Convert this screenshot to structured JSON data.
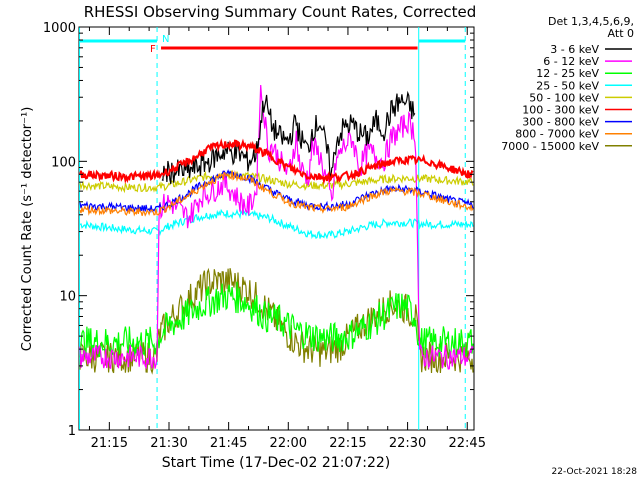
{
  "chart_data": {
    "type": "line",
    "title": "RHESSI Observing Summary Count Rates, Corrected",
    "xlabel": "Start Time (17-Dec-02 21:07:22)",
    "ylabel": "Corrected Count Rate (s⁻¹ detector⁻¹)",
    "yscale": "log",
    "ylim": [
      1,
      1000
    ],
    "xlim_minutes": [
      7.37,
      106.7
    ],
    "x_unit": "minutes after 21:00 UT",
    "x_ticks": [
      15,
      30,
      45,
      60,
      75,
      90,
      105
    ],
    "x_tick_labels": [
      "21:15",
      "21:30",
      "21:45",
      "22:00",
      "22:15",
      "22:30",
      "22:45"
    ],
    "y_ticks": [
      1,
      10,
      100,
      1000
    ],
    "y_tick_labels": [
      "1",
      "10",
      "100",
      "1000"
    ],
    "legend_header": [
      "Det 1,3,4,5,6,9,",
      "Att 0"
    ],
    "legend_position": "top-right, outside plot",
    "series": [
      {
        "name": "3 - 6 keV",
        "color": "#000000",
        "x": [
          7.4,
          20,
          27,
          28,
          35,
          40,
          44,
          48,
          50,
          52,
          54,
          56,
          58,
          60,
          62,
          63,
          65,
          66,
          68,
          71,
          72,
          74,
          76,
          78,
          80,
          82,
          84,
          86,
          88,
          90,
          92,
          93
        ],
        "y": [
          null,
          null,
          null,
          82,
          85,
          100,
          120,
          112,
          100,
          115,
          300,
          180,
          150,
          140,
          200,
          150,
          120,
          170,
          200,
          80,
          140,
          180,
          190,
          160,
          150,
          200,
          170,
          240,
          280,
          270,
          220,
          null
        ]
      },
      {
        "name": "6 - 12 keV",
        "color": "#ff00ff",
        "x": [
          7.4,
          10,
          15,
          20,
          27,
          27.5,
          30,
          35,
          38,
          41,
          44,
          48,
          50,
          52,
          53,
          54,
          55,
          56,
          58,
          60,
          62,
          63,
          65,
          66,
          68,
          71,
          72,
          74,
          76,
          78,
          80,
          82,
          84,
          86,
          88,
          90,
          92,
          93,
          96,
          100,
          106.5
        ],
        "y": [
          3.5,
          3.5,
          3.5,
          3.5,
          3.5,
          45,
          50,
          38,
          55,
          60,
          70,
          50,
          45,
          60,
          350,
          220,
          120,
          130,
          100,
          80,
          150,
          90,
          75,
          130,
          110,
          50,
          100,
          130,
          150,
          90,
          120,
          110,
          100,
          150,
          170,
          200,
          160,
          3.5,
          3.5,
          3.5,
          3.5
        ]
      },
      {
        "name": "12 - 25 keV",
        "color": "#00ff00",
        "x": [
          7.4,
          15,
          20,
          27,
          27.5,
          30,
          34,
          38,
          42,
          45,
          48,
          52,
          54,
          58,
          62,
          66,
          70,
          75,
          80,
          85,
          88,
          90,
          92,
          93,
          96,
          100,
          106.5
        ],
        "y": [
          4.5,
          4.5,
          4.5,
          4.5,
          5.0,
          6,
          7,
          8.5,
          9.5,
          10,
          9.5,
          8,
          7,
          6.5,
          5.5,
          5,
          4.8,
          5,
          6,
          7.5,
          8.5,
          8,
          7,
          4.5,
          4.5,
          4.5,
          4.5
        ]
      },
      {
        "name": "25 - 50 keV",
        "color": "#00ffff",
        "x": [
          7.4,
          15,
          20,
          27,
          30,
          35,
          40,
          45,
          50,
          55,
          60,
          65,
          70,
          75,
          80,
          85,
          90,
          95,
          100,
          106.5
        ],
        "y": [
          34,
          32,
          31,
          30,
          33,
          37,
          40,
          41,
          40,
          38,
          33,
          29,
          28,
          30,
          33,
          35,
          35,
          34,
          34,
          34
        ]
      },
      {
        "name": "50 - 100 keV",
        "color": "#cccc00",
        "x": [
          7.4,
          15,
          20,
          27,
          30,
          35,
          40,
          45,
          50,
          55,
          60,
          65,
          70,
          75,
          80,
          85,
          90,
          95,
          100,
          106.5
        ],
        "y": [
          67,
          65,
          64,
          64,
          66,
          72,
          78,
          80,
          78,
          73,
          68,
          66,
          66,
          68,
          71,
          74,
          75,
          74,
          72,
          70
        ]
      },
      {
        "name": "100 - 300 keV",
        "color": "#ff0000",
        "x": [
          7.4,
          15,
          20,
          27,
          30,
          35,
          40,
          45,
          50,
          55,
          60,
          65,
          70,
          75,
          80,
          85,
          90,
          95,
          100,
          106.5
        ],
        "y": [
          80,
          78,
          77,
          78,
          85,
          100,
          125,
          135,
          130,
          112,
          90,
          78,
          76,
          78,
          88,
          98,
          103,
          100,
          90,
          78
        ]
      },
      {
        "name": "300 - 800 keV",
        "color": "#0000ff",
        "x": [
          7.4,
          15,
          20,
          27,
          30,
          35,
          40,
          45,
          50,
          55,
          60,
          65,
          70,
          75,
          80,
          85,
          90,
          95,
          100,
          106.5
        ],
        "y": [
          47,
          46,
          45,
          44,
          48,
          58,
          72,
          82,
          76,
          62,
          52,
          47,
          46,
          48,
          56,
          62,
          62,
          58,
          52,
          47
        ]
      },
      {
        "name": "800 - 7000 keV",
        "color": "#ff8000",
        "x": [
          7.4,
          15,
          20,
          27,
          30,
          35,
          40,
          45,
          50,
          55,
          60,
          65,
          70,
          75,
          80,
          85,
          90,
          95,
          100,
          106.5
        ],
        "y": [
          44,
          43,
          42,
          42,
          46,
          56,
          70,
          80,
          74,
          60,
          50,
          45,
          44,
          46,
          54,
          60,
          60,
          56,
          50,
          45
        ]
      },
      {
        "name": "7000 - 15000 keV",
        "color": "#808000",
        "x": [
          7.4,
          15,
          20,
          27,
          27.5,
          30,
          33,
          36,
          40,
          43,
          46,
          50,
          53,
          56,
          59,
          62,
          65,
          69,
          73,
          76,
          80,
          84,
          86,
          88,
          90,
          92,
          93,
          96,
          100,
          106.5
        ],
        "y": [
          3.5,
          3.5,
          3.5,
          3.5,
          5,
          6.5,
          8,
          10,
          12.5,
          13,
          12.5,
          11,
          9,
          7,
          5.5,
          4.5,
          4,
          3.8,
          4.2,
          5.2,
          6.5,
          8,
          8.5,
          8.5,
          7.8,
          7,
          3.5,
          3.5,
          3.5,
          3.5
        ]
      }
    ],
    "annotations": [
      {
        "label": "N",
        "color": "#00ffff",
        "text": "night (eclipse) intervals",
        "intervals": [
          [
            7.4,
            27.0
          ],
          [
            92.8,
            104.5
          ]
        ]
      },
      {
        "label": "F",
        "color": "#ff0000",
        "text": "flare flag",
        "intervals": [
          [
            28.0,
            92.5
          ]
        ]
      },
      {
        "text": "cyan dashed verticals at night boundaries",
        "x_minutes": [
          27.0,
          104.5
        ]
      },
      {
        "text": "solid verticals at data gaps",
        "x_minutes": [
          7.5,
          92.8
        ]
      }
    ]
  },
  "footer": {
    "timestamp": "22-Oct-2021 18:28"
  }
}
